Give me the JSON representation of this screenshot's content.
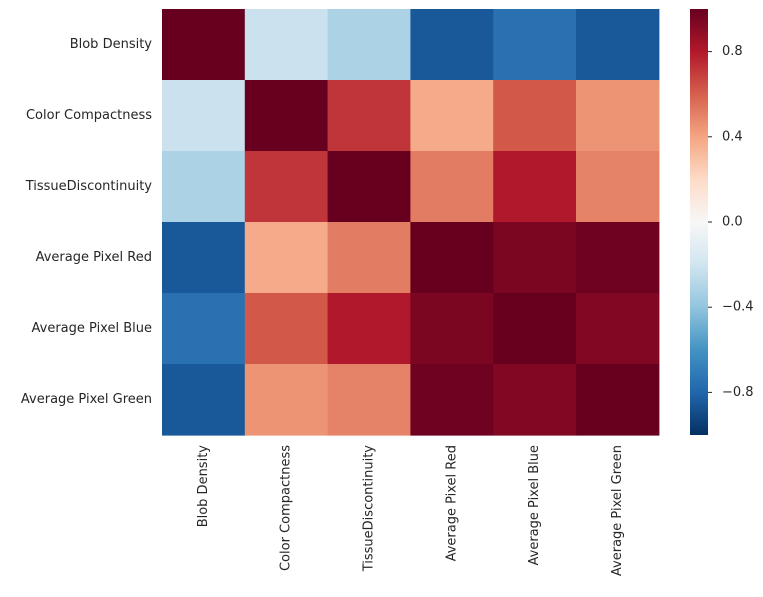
{
  "chart_data": {
    "type": "heatmap",
    "title": "",
    "xlabel": "",
    "ylabel": "",
    "rows": [
      "Blob Density",
      "Color Compactness",
      "TissueDiscontinuity",
      "Average Pixel Red",
      "Average Pixel Blue",
      "Average Pixel Green"
    ],
    "columns": [
      "Blob Density",
      "Color Compactness",
      "TissueDiscontinuity",
      "Average Pixel Red",
      "Average Pixel Blue",
      "Average Pixel Green"
    ],
    "values": [
      [
        1.0,
        -0.22,
        -0.32,
        -0.85,
        -0.75,
        -0.85
      ],
      [
        -0.22,
        1.0,
        0.72,
        0.38,
        0.62,
        0.45
      ],
      [
        -0.32,
        0.72,
        1.0,
        0.52,
        0.8,
        0.5
      ],
      [
        -0.85,
        0.38,
        0.52,
        1.0,
        0.95,
        0.98
      ],
      [
        -0.75,
        0.62,
        0.8,
        0.95,
        1.0,
        0.93
      ],
      [
        -0.85,
        0.45,
        0.5,
        0.98,
        0.93,
        1.0
      ]
    ],
    "colorscale": "RdBu_r",
    "vmin": -1.0,
    "vmax": 1.0,
    "colorbar": {
      "ticks": [
        0.8,
        0.4,
        0.0,
        -0.4,
        -0.8
      ],
      "tick_labels": [
        "0.8",
        "0.4",
        "0.0",
        "−0.4",
        "−0.8"
      ]
    },
    "colors": {
      "low": "#053061",
      "mid": "#f7f7f7",
      "high": "#67001f"
    }
  }
}
